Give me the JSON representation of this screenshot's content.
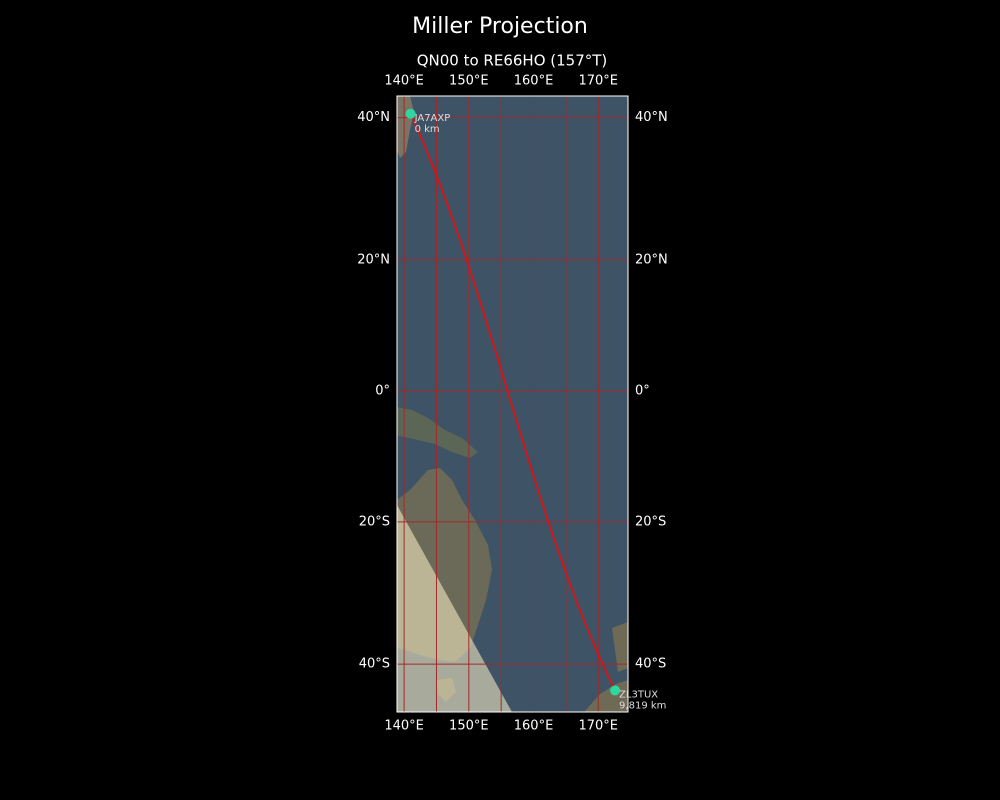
{
  "map": {
    "title": "Miller Projection",
    "subtitle": "QN00 to RE66HO (157°T)",
    "xlim": [
      138.9,
      174.6
    ],
    "ylim": [
      -46.1,
      42.8
    ],
    "xticks": [
      {
        "value": 140,
        "label": "140°E"
      },
      {
        "value": 150,
        "label": "150°E"
      },
      {
        "value": 160,
        "label": "160°E"
      },
      {
        "value": 170,
        "label": "170°E"
      }
    ],
    "yticks": [
      {
        "value": 40,
        "label": "40°N"
      },
      {
        "value": 20,
        "label": "20°N"
      },
      {
        "value": 0,
        "label": "0°"
      },
      {
        "value": -20,
        "label": "20°S"
      },
      {
        "value": -40,
        "label": "40°S"
      }
    ],
    "grid_lons": [
      140,
      145,
      150,
      155,
      160,
      165,
      170
    ],
    "grid_color": "#a02a2a",
    "path_color": "#e01010",
    "marker_color": "#2ed6a0",
    "stations": [
      {
        "name": "JA7AXP",
        "distance": "0 km",
        "lon": 141,
        "lat": 40.5
      },
      {
        "name": "ZL3TUX",
        "distance": "9,819 km",
        "lon": 172.6,
        "lat": -43.4
      }
    ]
  }
}
